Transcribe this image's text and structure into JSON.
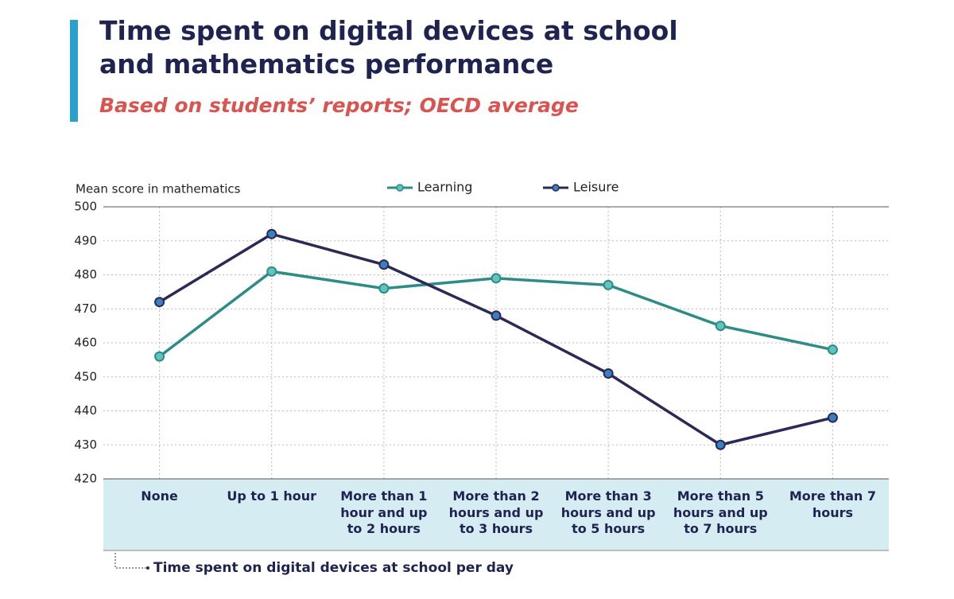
{
  "chart_data": {
    "type": "line",
    "title": "Time spent on digital devices at school and mathematics performance",
    "subtitle": "Based on students’ reports; OECD average",
    "y_label": "Mean score in mathematics",
    "x_label": "Time spent on digital devices at school per day",
    "categories": [
      "None",
      "Up to 1 hour",
      "More than 1 hour and up to 2 hours",
      "More than 2 hours and up to 3 hours",
      "More than 3 hours and up to 5 hours",
      "More than 5 hours and up to 7 hours",
      "More than 7 hours"
    ],
    "series": [
      {
        "name": "Learning",
        "color": "#2e8b86",
        "marker_color": "#5fc4bd",
        "values": [
          456,
          481,
          476,
          479,
          477,
          465,
          458
        ]
      },
      {
        "name": "Leisure",
        "color": "#2a2a55",
        "marker_color": "#3a7fc0",
        "values": [
          472,
          492,
          483,
          468,
          451,
          430,
          438
        ]
      }
    ],
    "ylim": [
      420,
      500
    ],
    "yticks": [
      420,
      430,
      440,
      450,
      460,
      470,
      480,
      490,
      500
    ],
    "grid": true,
    "legend": "top"
  }
}
